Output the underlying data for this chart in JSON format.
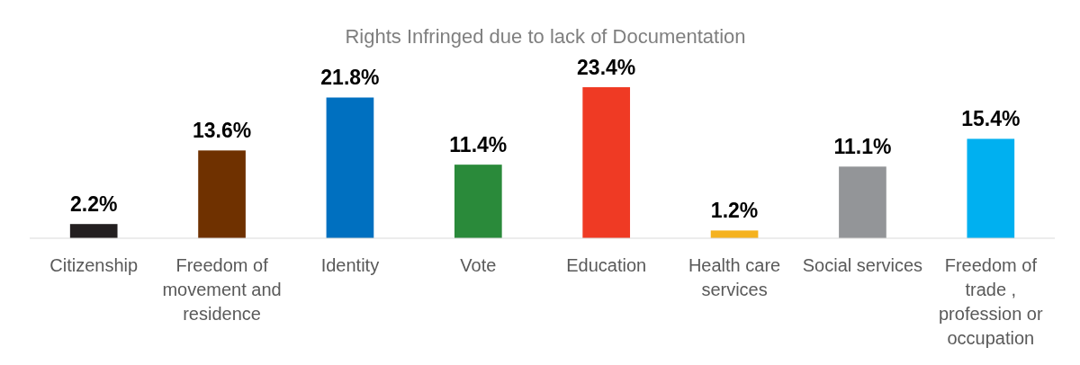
{
  "chart_data": {
    "type": "bar",
    "title": "Rights Infringed due to lack of Documentation",
    "categories": [
      "Citizenship",
      "Freedom of movement and residence",
      "Identity",
      "Vote",
      "Education",
      "Health care services",
      "Social services",
      "Freedom of trade , profession or occupation"
    ],
    "values": [
      2.2,
      13.6,
      21.8,
      11.4,
      23.4,
      1.2,
      11.1,
      15.4
    ],
    "colors": [
      "#231f20",
      "#6f3100",
      "#0070c0",
      "#2a8a3a",
      "#ef3a24",
      "#f5b21e",
      "#939598",
      "#00b0f0"
    ],
    "value_labels": [
      "2.2%",
      "13.6%",
      "21.8%",
      "11.4%",
      "23.4%",
      "1.2%",
      "11.1%",
      "15.4%"
    ]
  }
}
